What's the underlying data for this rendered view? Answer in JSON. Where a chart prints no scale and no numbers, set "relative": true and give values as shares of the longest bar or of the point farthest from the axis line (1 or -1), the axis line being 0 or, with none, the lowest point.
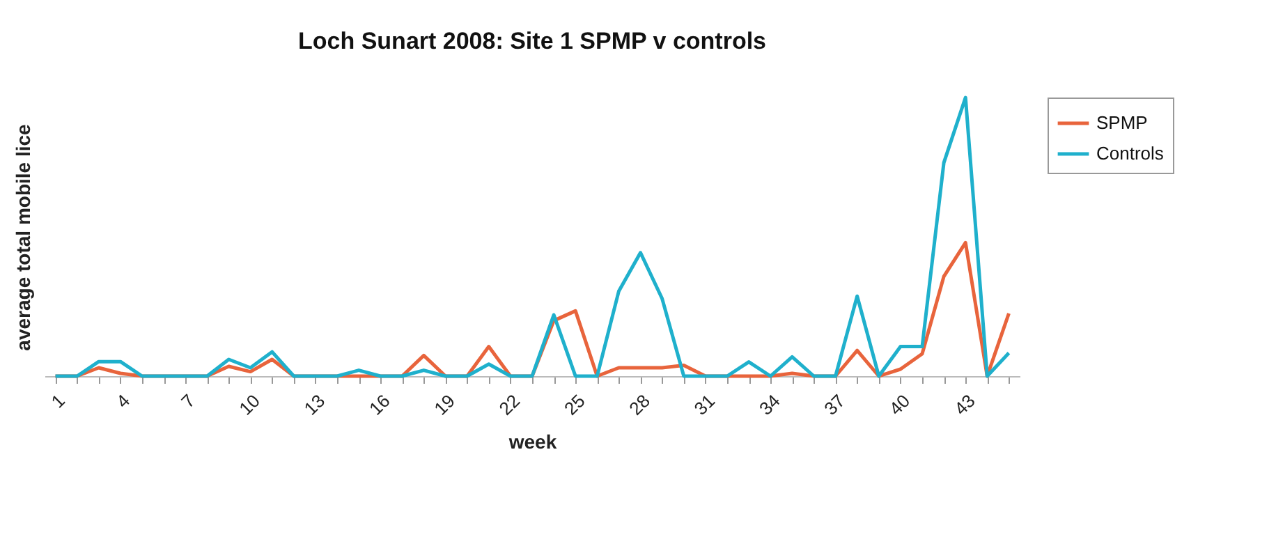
{
  "chart_data": {
    "type": "line",
    "title": "Loch Sunart 2008: Site 1 SPMP v controls",
    "xlabel": "week",
    "ylabel": "average total mobile lice",
    "relative": true,
    "legend": "right",
    "grid": false,
    "categories": [
      "1",
      null,
      null,
      "4",
      null,
      null,
      "7",
      null,
      null,
      "10",
      null,
      null,
      "13",
      null,
      null,
      "16",
      null,
      null,
      "19",
      null,
      null,
      "22",
      null,
      null,
      "25",
      null,
      null,
      "28",
      null,
      null,
      "31",
      null,
      null,
      "34",
      null,
      null,
      "37",
      null,
      null,
      "40",
      null,
      null,
      "43",
      null,
      null
    ],
    "series": [
      {
        "name": "SPMP",
        "color": "#e8643c",
        "values": [
          0,
          0,
          0.03,
          0.01,
          0,
          0,
          0,
          0,
          0.035,
          0.016,
          0.06,
          0,
          0,
          0,
          0,
          0,
          0,
          0.074,
          0,
          0,
          0.106,
          0,
          0,
          0.199,
          0.234,
          0,
          0.03,
          0.03,
          0.03,
          0.039,
          0,
          0,
          0,
          0,
          0.01,
          0,
          0,
          0.092,
          0,
          0.025,
          0.08,
          0.358,
          0.479,
          0,
          0.225
        ]
      },
      {
        "name": "Controls",
        "color": "#1fb0cc",
        "values": [
          0,
          0,
          0.052,
          0.052,
          0,
          0,
          0,
          0,
          0.06,
          0.03,
          0.087,
          0,
          0,
          0,
          0.021,
          0,
          0,
          0.021,
          0,
          0,
          0.043,
          0,
          0,
          0.22,
          0,
          0,
          0.305,
          0.443,
          0.278,
          0,
          0,
          0,
          0.051,
          0,
          0.069,
          0,
          0,
          0.287,
          0,
          0.106,
          0.106,
          0.766,
          1,
          0,
          0.083
        ]
      }
    ]
  }
}
